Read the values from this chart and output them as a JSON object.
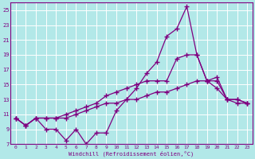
{
  "title": "",
  "xlabel": "Windchill (Refroidissement éolien,°C)",
  "background_color": "#b2e8e8",
  "grid_color": "#c8e8e8",
  "line_color": "#800080",
  "x_values": [
    0,
    1,
    2,
    3,
    4,
    5,
    6,
    7,
    8,
    9,
    10,
    11,
    12,
    13,
    14,
    15,
    16,
    17,
    18,
    19,
    20,
    21,
    22,
    23
  ],
  "line1": [
    10.5,
    9.5,
    10.5,
    9.0,
    9.0,
    7.5,
    9.0,
    7.0,
    8.5,
    8.5,
    11.5,
    13.0,
    14.5,
    16.5,
    18.0,
    21.5,
    22.5,
    25.5,
    19.0,
    15.5,
    14.5,
    13.0,
    12.5,
    12.5
  ],
  "line2": [
    10.5,
    9.5,
    10.5,
    10.5,
    10.5,
    11.0,
    11.5,
    12.0,
    12.5,
    13.5,
    14.0,
    14.5,
    15.0,
    15.5,
    15.5,
    15.5,
    18.5,
    19.0,
    19.0,
    15.5,
    16.0,
    13.0,
    13.0,
    12.5
  ],
  "line3": [
    10.5,
    9.5,
    10.5,
    10.5,
    10.5,
    10.5,
    11.0,
    11.5,
    12.0,
    12.5,
    12.5,
    13.0,
    13.0,
    13.5,
    14.0,
    14.0,
    14.5,
    15.0,
    15.5,
    15.5,
    15.5,
    13.0,
    13.0,
    12.5
  ],
  "xlim": [
    -0.5,
    23.5
  ],
  "ylim": [
    7,
    26
  ],
  "yticks": [
    7,
    9,
    11,
    13,
    15,
    17,
    19,
    21,
    23,
    25
  ],
  "xticks": [
    0,
    1,
    2,
    3,
    4,
    5,
    6,
    7,
    8,
    9,
    10,
    11,
    12,
    13,
    14,
    15,
    16,
    17,
    18,
    19,
    20,
    21,
    22,
    23
  ]
}
